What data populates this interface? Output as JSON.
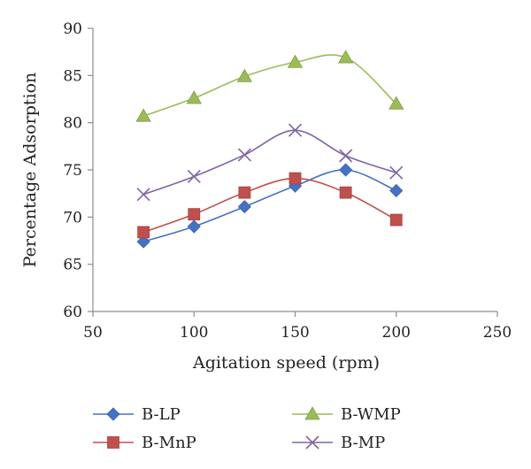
{
  "chart_data": {
    "type": "line",
    "title": "",
    "xlabel": "Agitation speed (rpm)",
    "ylabel": "Percentage Adsorption",
    "xlim": [
      50,
      250
    ],
    "ylim": [
      60,
      90
    ],
    "xticks": [
      50,
      100,
      150,
      200,
      250
    ],
    "yticks": [
      60,
      65,
      70,
      75,
      80,
      85,
      90
    ],
    "grid": false,
    "smooth": true,
    "legend_position": "bottom",
    "x": [
      75,
      100,
      125,
      150,
      175,
      200
    ],
    "series": [
      {
        "name": "B-LP",
        "values": [
          67.4,
          69.0,
          71.1,
          73.3,
          75.0,
          72.8
        ],
        "color": "#4472c4",
        "marker": "diamond"
      },
      {
        "name": "B-WMP",
        "values": [
          80.7,
          82.6,
          84.9,
          86.4,
          86.9,
          82.0
        ],
        "color": "#9bbb59",
        "marker": "triangle"
      },
      {
        "name": "B-MnP",
        "values": [
          68.4,
          70.3,
          72.6,
          74.1,
          72.6,
          69.7
        ],
        "color": "#c0504d",
        "marker": "square"
      },
      {
        "name": "B-MP",
        "values": [
          72.4,
          74.3,
          76.6,
          79.2,
          76.5,
          74.7
        ],
        "color": "#8064a2",
        "marker": "x"
      }
    ]
  }
}
